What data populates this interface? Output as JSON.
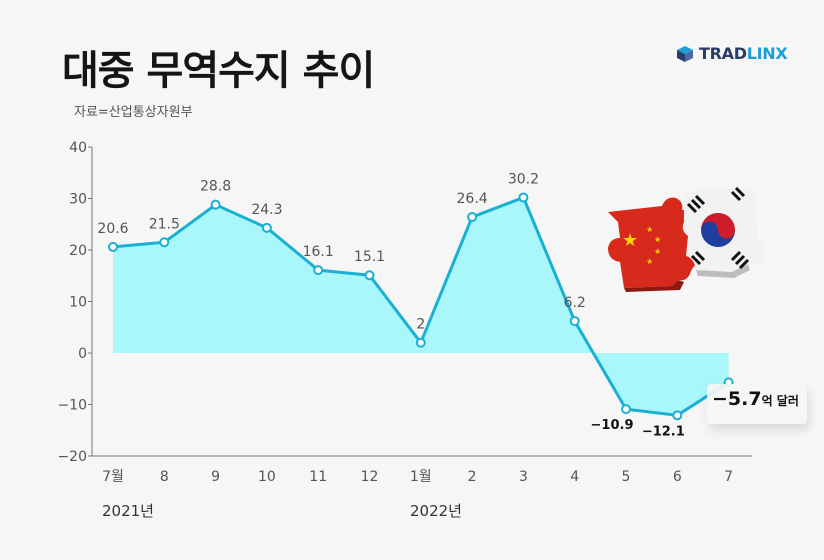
{
  "header": {
    "title": "대중 무역수지 추이",
    "source": "자료=산업통상자원부"
  },
  "brand": {
    "logo_text_1": "TRAD",
    "logo_text_2": "LINX",
    "colors": {
      "dark": "#2a3d66",
      "accent": "#1b9fd6"
    }
  },
  "years": {
    "first": "2021년",
    "second": "2022년"
  },
  "callout": {
    "value": "−5.7",
    "unit": "억 달러"
  },
  "decoration": {
    "flags": "china-korea-puzzle-icon"
  },
  "chart_data": {
    "type": "area",
    "categories": [
      "7월",
      "8",
      "9",
      "10",
      "11",
      "12",
      "1월",
      "2",
      "3",
      "4",
      "5",
      "6",
      "7"
    ],
    "values": [
      20.6,
      21.5,
      28.8,
      24.3,
      16.1,
      15.1,
      2,
      26.4,
      30.2,
      6.2,
      -10.9,
      -12.1,
      -5.7
    ],
    "value_labels": [
      "20.6",
      "21.5",
      "28.8",
      "24.3",
      "16.1",
      "15.1",
      "2",
      "26.4",
      "30.2",
      "6.2",
      "−10.9",
      "−12.1",
      ""
    ],
    "yticks": [
      "40",
      "30",
      "20",
      "10",
      "0",
      "−10",
      "−20"
    ],
    "ylim": [
      -20,
      40
    ],
    "grid": false,
    "colors": {
      "line": "#1ab0d3",
      "fill": "#a9f7fb",
      "marker_fill": "#ffffff"
    }
  }
}
